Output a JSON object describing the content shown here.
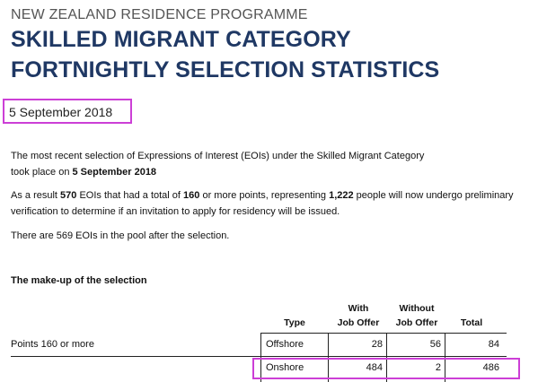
{
  "header": {
    "programme": "NEW ZEALAND RESIDENCE PROGRAMME",
    "title_line1": "SKILLED MIGRANT CATEGORY",
    "title_line2": "FORTNIGHTLY SELECTION STATISTICS",
    "date": "5 September 2018",
    "highlight_color": "#cc3fd6",
    "title_color": "#1f3864"
  },
  "body": {
    "para1_line1": "The most recent selection of Expressions of Interest (EOIs) under the Skilled Migrant Category",
    "para1_line2_prefix": "took place on ",
    "para1_line2_date": "5 September 2018",
    "para2_prefix": "As a result ",
    "para2_eois": "570",
    "para2_mid": " EOIs that had a total of ",
    "para2_points": "160",
    "para2_mid2": " or more points, representing ",
    "para2_people": "1,222",
    "para2_suffix": " people will now undergo preliminary",
    "para2_line2": "verification to determine if an invitation to apply for residency will be issued.",
    "para3": "There are 569 EOIs in the pool after the selection."
  },
  "table": {
    "heading": "The make-up of the selection",
    "col_type": "Type",
    "col_with_1": "With",
    "col_with_2": "Job Offer",
    "col_without_1": "Without",
    "col_without_2": "Job Offer",
    "col_total": "Total",
    "row_label": "Points 160 or more",
    "rows": [
      {
        "type": "Offshore",
        "with": "28",
        "without": "56",
        "total": "84"
      },
      {
        "type": "Onshore",
        "with": "484",
        "without": "2",
        "total": "486"
      }
    ]
  }
}
